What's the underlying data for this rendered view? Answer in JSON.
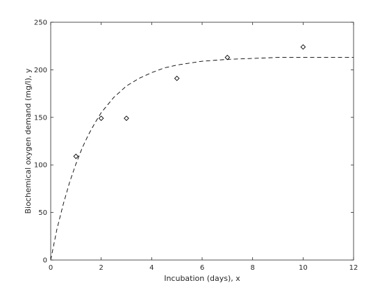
{
  "chart_data": {
    "type": "scatter",
    "title": "",
    "xlabel": "Incubation (days), x",
    "ylabel": "Biochemical oxygen demand (mg/l), y",
    "xlim": [
      0,
      12
    ],
    "ylim": [
      0,
      250
    ],
    "xticks": [
      0,
      2,
      4,
      6,
      8,
      10,
      12
    ],
    "yticks": [
      0,
      50,
      100,
      150,
      200,
      250
    ],
    "xtick_labels": [
      "0",
      "2",
      "4",
      "6",
      "8",
      "10",
      "12"
    ],
    "ytick_labels": [
      "0",
      "50",
      "100",
      "150",
      "200",
      "250"
    ],
    "grid": false,
    "legend": "none",
    "series": [
      {
        "kind": "points",
        "marker": "diamond",
        "color": "#000000",
        "x": [
          1,
          2,
          3,
          5,
          7,
          10
        ],
        "y": [
          109,
          149,
          149,
          191,
          213,
          224
        ]
      },
      {
        "kind": "fitted-curve",
        "style": "dashed",
        "color": "#000000",
        "x": [
          0,
          0.25,
          0.5,
          0.75,
          1,
          1.25,
          1.5,
          1.75,
          2,
          2.5,
          3,
          3.5,
          4,
          4.5,
          5,
          5.5,
          6,
          7,
          8,
          9,
          10,
          11,
          12
        ],
        "y": [
          0,
          33,
          59,
          82,
          101,
          118,
          132,
          144,
          155,
          171,
          183,
          191,
          197,
          202,
          205,
          207,
          209,
          211,
          212,
          213,
          213,
          213,
          213
        ]
      }
    ]
  }
}
